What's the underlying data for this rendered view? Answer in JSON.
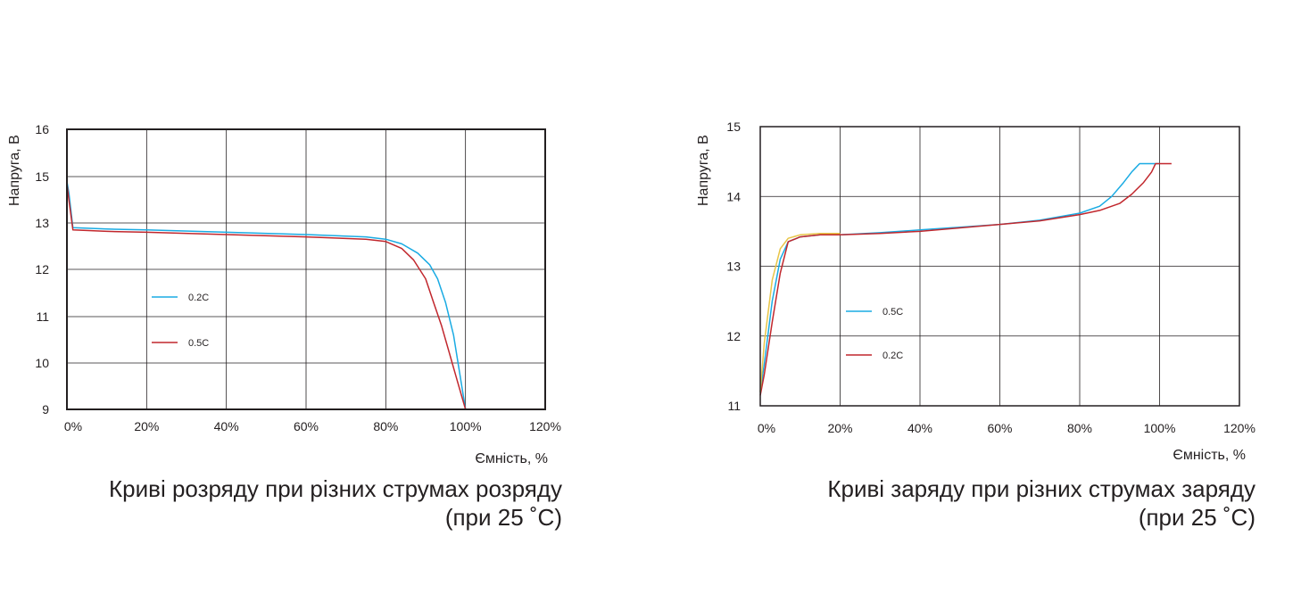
{
  "chart_data": [
    {
      "type": "line",
      "title": "",
      "ylabel": "Напруга, В",
      "xlabel": "Ємність, %",
      "caption_line1": "Криві розряду при різних струмах розряду",
      "caption_line2": "(при 25 ˚С)",
      "x_ticks": [
        "0%",
        "20%",
        "40%",
        "60%",
        "80%",
        "100%",
        "120%"
      ],
      "y_ticks": [
        "9",
        "10",
        "11",
        "12",
        "13",
        "15",
        "16"
      ],
      "xlim": [
        0,
        120
      ],
      "ylim": [
        9,
        16
      ],
      "grid": true,
      "legend_position": "center-left",
      "series": [
        {
          "name": "0.2C",
          "color": "#1aabe3",
          "x": [
            0,
            0.5,
            1.5,
            10,
            20,
            40,
            60,
            75,
            80,
            84,
            88,
            91,
            93,
            95,
            97,
            98.5,
            100
          ],
          "y": [
            14.8,
            14.3,
            12.9,
            12.87,
            12.85,
            12.8,
            12.75,
            12.7,
            12.65,
            12.55,
            12.35,
            12.1,
            11.8,
            11.3,
            10.6,
            9.8,
            9.0
          ]
        },
        {
          "name": "0.5C",
          "color": "#c1272d",
          "x": [
            0,
            0.5,
            1.5,
            10,
            20,
            40,
            60,
            75,
            80,
            84,
            87,
            90,
            92,
            94,
            96,
            98,
            100
          ],
          "y": [
            14.7,
            14.0,
            12.85,
            12.82,
            12.8,
            12.75,
            12.7,
            12.65,
            12.6,
            12.45,
            12.2,
            11.8,
            11.3,
            10.8,
            10.2,
            9.6,
            9.0
          ]
        }
      ]
    },
    {
      "type": "line",
      "title": "",
      "ylabel": "Напруга, В",
      "xlabel": "Ємність, %",
      "caption_line1": "Криві заряду при різних струмах заряду",
      "caption_line2": "(при 25 ˚С)",
      "x_ticks": [
        "0%",
        "20%",
        "40%",
        "60%",
        "80%",
        "100%",
        "120%"
      ],
      "y_ticks": [
        "11",
        "12",
        "13",
        "14",
        "15"
      ],
      "xlim": [
        0,
        120
      ],
      "ylim": [
        11,
        15
      ],
      "grid": true,
      "legend_position": "center-left",
      "series": [
        {
          "name": "0.5C",
          "color": "#1aabe3",
          "x": [
            0,
            1,
            3,
            5,
            7,
            10,
            15,
            20,
            30,
            40,
            50,
            60,
            70,
            80,
            85,
            88,
            91,
            93,
            95,
            100
          ],
          "y": [
            11.2,
            11.6,
            12.5,
            13.1,
            13.35,
            13.42,
            13.45,
            13.45,
            13.48,
            13.52,
            13.56,
            13.6,
            13.66,
            13.76,
            13.86,
            14.0,
            14.2,
            14.35,
            14.47,
            14.47
          ]
        },
        {
          "name": "0.2C",
          "color": "#c1272d",
          "x": [
            0,
            1,
            3,
            5,
            7,
            10,
            15,
            20,
            30,
            40,
            50,
            60,
            70,
            80,
            85,
            90,
            93,
            96,
            98,
            99,
            100,
            103
          ],
          "y": [
            11.15,
            11.45,
            12.2,
            12.9,
            13.35,
            13.42,
            13.45,
            13.45,
            13.47,
            13.5,
            13.55,
            13.6,
            13.65,
            13.74,
            13.8,
            13.9,
            14.03,
            14.2,
            14.35,
            14.47,
            14.47,
            14.47
          ]
        },
        {
          "color": "#e8c547",
          "x": [
            0,
            1,
            3,
            5,
            7,
            10,
            15,
            20
          ],
          "y": [
            11.2,
            11.9,
            12.8,
            13.25,
            13.4,
            13.45,
            13.47,
            13.47
          ]
        }
      ]
    }
  ]
}
